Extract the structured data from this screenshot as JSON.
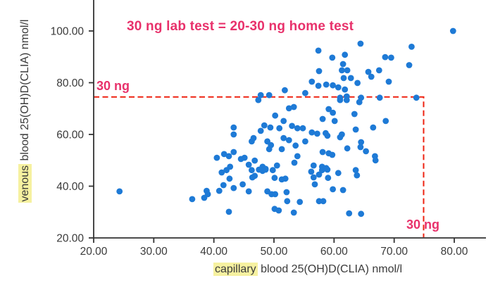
{
  "chart_data": {
    "type": "scatter",
    "title": "30 ng lab test = 20-30 ng home test",
    "xlabel": "capillary blood 25(OH)D(CLIA) nmol/l",
    "xlabel_highlight": "capillary",
    "xlabel_rest": " blood 25(OH)D(CLIA) nmol/l",
    "ylabel": "venous blood 25(OH)D(CLIA) nmol/l",
    "ylabel_highlight": "venous",
    "ylabel_rest": " blood 25(OH)D(CLIA) nmol/l",
    "x_tick_values": [
      20,
      30,
      40,
      50,
      60,
      70,
      80
    ],
    "x_tick_labels": [
      "20.00",
      "30.00",
      "40.00",
      "50.00",
      "60.00",
      "70.00",
      "80.00"
    ],
    "y_tick_values": [
      20,
      40,
      60,
      80,
      100
    ],
    "y_tick_labels": [
      "20.00",
      "40.00",
      "60.00",
      "80.00",
      "100.00"
    ],
    "xlim": [
      20,
      85.3
    ],
    "ylim": [
      20,
      106.5
    ],
    "grid": false,
    "legend": null,
    "point_color": "#1e7ad6",
    "axis_color": "#333333",
    "tick_text_color": "#3a3a3a",
    "highlight_color": "#f6f1a0",
    "reference": {
      "x_threshold": 74.9,
      "y_threshold": 74.5,
      "line_color": "#ee2211",
      "label_top_left": "30 ng",
      "label_bottom_right": "30 ng",
      "label_color": "#e8316b"
    },
    "points": [
      [
        57.4,
        92.4
      ],
      [
        64.4,
        95.1
      ],
      [
        59.7,
        89.7
      ],
      [
        61.8,
        90.8
      ],
      [
        61.5,
        87.2
      ],
      [
        57.5,
        84.5
      ],
      [
        61.3,
        84.8
      ],
      [
        62.2,
        84.8
      ],
      [
        61.6,
        81.8
      ],
      [
        62.8,
        81.8
      ],
      [
        65.7,
        84.2
      ],
      [
        66.2,
        82.3
      ],
      [
        67.5,
        84.8
      ],
      [
        56.3,
        80.4
      ],
      [
        57.4,
        78.8
      ],
      [
        58.7,
        79.3
      ],
      [
        59.8,
        79.0
      ],
      [
        60.7,
        78.2
      ],
      [
        63.9,
        79.9
      ],
      [
        61.8,
        77.4
      ],
      [
        51.8,
        77.1
      ],
      [
        55.2,
        76.0
      ],
      [
        61.0,
        74.2
      ],
      [
        62.1,
        74.7
      ],
      [
        49.2,
        75.2
      ],
      [
        47.8,
        75.2
      ],
      [
        64.5,
        74.2
      ],
      [
        67.6,
        74.2
      ],
      [
        79.8,
        100.0
      ],
      [
        72.9,
        93.9
      ],
      [
        68.5,
        89.9
      ],
      [
        69.5,
        89.7
      ],
      [
        72.5,
        86.8
      ],
      [
        69.1,
        80.4
      ],
      [
        73.7,
        74.2
      ],
      [
        47.4,
        73.3
      ],
      [
        52.5,
        70.1
      ],
      [
        53.3,
        70.6
      ],
      [
        50.2,
        67.3
      ],
      [
        51.6,
        65.2
      ],
      [
        43.3,
        62.7
      ],
      [
        48.4,
        63.5
      ],
      [
        49.4,
        62.7
      ],
      [
        47.8,
        61.4
      ],
      [
        50.9,
        62.4
      ],
      [
        53.0,
        63.3
      ],
      [
        53.9,
        62.4
      ],
      [
        43.3,
        60.0
      ],
      [
        46.6,
        58.6
      ],
      [
        46.3,
        57.3
      ],
      [
        48.9,
        57.3
      ],
      [
        49.5,
        55.9
      ],
      [
        51.6,
        58.6
      ],
      [
        52.5,
        57.8
      ],
      [
        49.2,
        54.3
      ],
      [
        51.3,
        54.3
      ],
      [
        53.6,
        55.7
      ],
      [
        41.7,
        52.4
      ],
      [
        42.5,
        51.6
      ],
      [
        40.5,
        51.0
      ],
      [
        43.3,
        53.2
      ],
      [
        44.5,
        50.5
      ],
      [
        45.1,
        51.0
      ],
      [
        46.8,
        49.9
      ],
      [
        45.8,
        48.3
      ],
      [
        48.1,
        47.5
      ],
      [
        48.6,
        46.7
      ],
      [
        50.5,
        48.0
      ],
      [
        53.4,
        49.1
      ],
      [
        53.9,
        51.6
      ],
      [
        42.7,
        47.5
      ],
      [
        61.0,
        73.3
      ],
      [
        62.1,
        73.3
      ],
      [
        64.2,
        72.5
      ],
      [
        59.1,
        69.8
      ],
      [
        59.8,
        68.4
      ],
      [
        63.4,
        67.9
      ],
      [
        58.1,
        66.0
      ],
      [
        60.1,
        65.2
      ],
      [
        68.6,
        65.2
      ],
      [
        66.5,
        62.7
      ],
      [
        54.8,
        62.4
      ],
      [
        56.3,
        60.8
      ],
      [
        57.2,
        60.3
      ],
      [
        58.6,
        60.5
      ],
      [
        58.9,
        59.5
      ],
      [
        61.3,
        60.0
      ],
      [
        61.0,
        58.9
      ],
      [
        55.2,
        57.3
      ],
      [
        63.6,
        61.9
      ],
      [
        64.5,
        57.0
      ],
      [
        64.4,
        55.1
      ],
      [
        62.2,
        54.6
      ],
      [
        65.3,
        53.5
      ],
      [
        58.1,
        53.2
      ],
      [
        59.1,
        52.7
      ],
      [
        59.7,
        52.1
      ],
      [
        66.8,
        51.6
      ],
      [
        66.9,
        50.0
      ],
      [
        56.6,
        48.0
      ],
      [
        58.0,
        47.5
      ],
      [
        58.7,
        47.0
      ],
      [
        63.6,
        46.2
      ],
      [
        41.3,
        45.3
      ],
      [
        42.1,
        46.2
      ],
      [
        42.6,
        42.9
      ],
      [
        46.3,
        46.2
      ],
      [
        47.5,
        46.4
      ],
      [
        48.1,
        45.9
      ],
      [
        48.6,
        46.4
      ],
      [
        46.4,
        43.4
      ],
      [
        46.8,
        44.0
      ],
      [
        49.8,
        46.2
      ],
      [
        50.1,
        43.2
      ],
      [
        51.3,
        42.6
      ],
      [
        51.9,
        42.9
      ],
      [
        41.6,
        40.4
      ],
      [
        40.9,
        38.2
      ],
      [
        43.3,
        39.3
      ],
      [
        44.8,
        40.7
      ],
      [
        45.8,
        38.0
      ],
      [
        38.8,
        38.2
      ],
      [
        39.0,
        36.9
      ],
      [
        38.4,
        35.5
      ],
      [
        48.9,
        38.0
      ],
      [
        49.6,
        36.9
      ],
      [
        50.2,
        36.9
      ],
      [
        52.1,
        37.7
      ],
      [
        52.2,
        34.2
      ],
      [
        50.1,
        31.2
      ],
      [
        50.8,
        30.6
      ],
      [
        42.5,
        30.1
      ],
      [
        53.3,
        29.8
      ],
      [
        54.3,
        33.9
      ],
      [
        56.2,
        45.6
      ],
      [
        56.6,
        43.4
      ],
      [
        57.5,
        44.5
      ],
      [
        58.0,
        46.2
      ],
      [
        58.9,
        46.4
      ],
      [
        59.0,
        43.2
      ],
      [
        60.7,
        45.1
      ],
      [
        56.8,
        40.7
      ],
      [
        59.8,
        38.8
      ],
      [
        61.5,
        38.5
      ],
      [
        63.8,
        44.2
      ],
      [
        57.5,
        34.2
      ],
      [
        58.2,
        34.2
      ],
      [
        62.5,
        29.5
      ],
      [
        64.5,
        29.3
      ],
      [
        24.3,
        38.0
      ],
      [
        36.4,
        35.0
      ]
    ]
  }
}
